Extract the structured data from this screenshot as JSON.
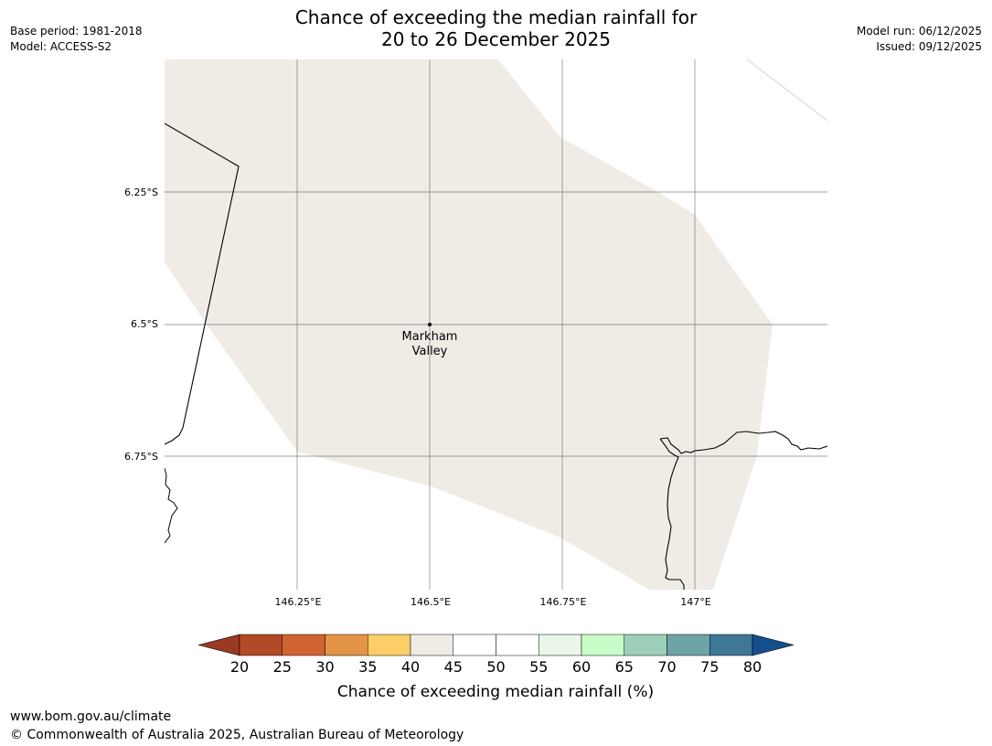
{
  "header": {
    "title_line1": "Chance of exceeding the median rainfall for",
    "title_line2": "20 to 26 December 2025",
    "base_period": "Base period: 1981-2018",
    "model": "Model: ACCESS-S2",
    "model_run": "Model run: 06/12/2025",
    "issued": "Issued: 09/12/2025"
  },
  "map": {
    "lat_labels": [
      "6.25°S",
      "6.5°S",
      "6.75°S"
    ],
    "lon_labels": [
      "146.25°E",
      "146.5°E",
      "146.75°E",
      "147°E"
    ],
    "place": {
      "name_line1": "Markham",
      "name_line2": "Valley"
    },
    "shaded_region_category": "40-45",
    "shaded_region_color": "#f0ebe5"
  },
  "colorbar": {
    "ticks": [
      "20",
      "25",
      "30",
      "35",
      "40",
      "45",
      "50",
      "55",
      "60",
      "65",
      "70",
      "75",
      "80"
    ],
    "colors": [
      "#b34a26",
      "#cf6430",
      "#e49446",
      "#fdcd67",
      "#f0ebe5",
      "#ffffff",
      "#ffffff",
      "#e9f6e9",
      "#c8fcc8",
      "#9dcfb9",
      "#6da4a6",
      "#3f7797"
    ],
    "under_color": "#9a3a22",
    "over_color": "#134f8c",
    "label": "Chance of exceeding median rainfall (%)"
  },
  "footer": {
    "url": "www.bom.gov.au/climate",
    "copyright": "© Commonwealth of Australia 2025, Australian Bureau of Meteorology"
  }
}
